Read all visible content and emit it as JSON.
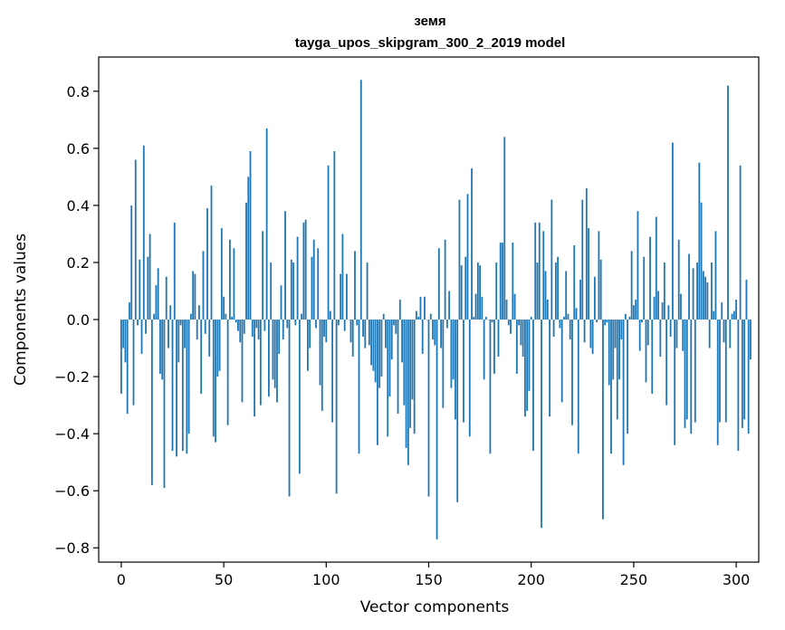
{
  "chart_data": {
    "type": "bar",
    "title": "земя",
    "subtitle": "tayga_upos_skipgram_300_2_2019 model",
    "xlabel": "Vector components",
    "ylabel": "Components values",
    "xlim": [
      -11,
      311
    ],
    "ylim": [
      -0.85,
      0.92
    ],
    "xticks": [
      0,
      50,
      100,
      150,
      200,
      250,
      300
    ],
    "yticks": [
      -0.8,
      -0.6,
      -0.4,
      -0.2,
      0.0,
      0.2,
      0.4,
      0.6,
      0.8
    ],
    "ytick_labels": [
      "−0.8",
      "−0.6",
      "−0.4",
      "−0.2",
      "0.0",
      "0.2",
      "0.4",
      "0.6",
      "0.8"
    ],
    "bar_color": "#1f77b4",
    "grid": false,
    "values": [
      -0.26,
      -0.1,
      -0.15,
      -0.33,
      0.06,
      0.4,
      -0.3,
      0.56,
      -0.02,
      0.21,
      -0.12,
      0.61,
      -0.05,
      0.22,
      0.3,
      -0.58,
      0.02,
      0.12,
      0.18,
      -0.19,
      -0.21,
      -0.59,
      0.15,
      -0.1,
      0.05,
      -0.46,
      0.34,
      -0.48,
      -0.15,
      -0.02,
      -0.46,
      -0.1,
      -0.47,
      -0.4,
      0.02,
      0.17,
      0.16,
      -0.07,
      0.05,
      -0.26,
      0.24,
      -0.05,
      0.39,
      -0.13,
      0.47,
      -0.41,
      -0.43,
      -0.2,
      -0.18,
      0.32,
      0.08,
      0.02,
      -0.37,
      0.28,
      0.01,
      0.25,
      -0.01,
      -0.04,
      -0.08,
      -0.29,
      -0.05,
      0.41,
      0.5,
      0.59,
      -0.06,
      -0.34,
      -0.03,
      -0.07,
      -0.3,
      0.31,
      -0.04,
      0.67,
      -0.27,
      0.2,
      -0.21,
      -0.24,
      -0.29,
      -0.12,
      0.12,
      -0.07,
      0.38,
      -0.03,
      -0.62,
      0.21,
      0.2,
      -0.02,
      0.29,
      -0.54,
      0.02,
      0.34,
      0.35,
      -0.18,
      -0.1,
      0.22,
      0.28,
      -0.03,
      0.25,
      -0.23,
      -0.32,
      -0.06,
      -0.08,
      0.54,
      0.03,
      -0.36,
      0.59,
      -0.61,
      -0.02,
      0.16,
      0.3,
      -0.04,
      0.16,
      0.0,
      -0.08,
      -0.13,
      0.24,
      -0.02,
      -0.47,
      0.84,
      -0.06,
      -0.1,
      0.2,
      -0.09,
      -0.16,
      -0.18,
      -0.22,
      -0.44,
      -0.24,
      -0.2,
      0.02,
      -0.1,
      -0.41,
      -0.27,
      -0.14,
      -0.02,
      -0.05,
      -0.33,
      0.07,
      -0.15,
      -0.3,
      -0.45,
      -0.51,
      -0.38,
      -0.28,
      -0.4,
      0.03,
      0.01,
      0.08,
      -0.12,
      0.08,
      0.0,
      -0.62,
      0.02,
      -0.07,
      -0.09,
      -0.77,
      0.25,
      -0.1,
      -0.31,
      0.28,
      -0.03,
      0.1,
      -0.24,
      -0.21,
      -0.35,
      -0.64,
      0.42,
      0.19,
      -0.36,
      0.22,
      0.44,
      -0.41,
      0.53,
      0.01,
      0.09,
      0.2,
      0.19,
      0.08,
      -0.21,
      0.01,
      0.0,
      -0.47,
      -0.01,
      -0.19,
      0.2,
      -0.13,
      0.27,
      0.27,
      0.64,
      0.07,
      -0.02,
      -0.05,
      0.27,
      0.09,
      -0.19,
      -0.02,
      -0.09,
      -0.13,
      -0.34,
      -0.32,
      -0.25,
      0.01,
      -0.46,
      0.34,
      0.2,
      0.34,
      -0.73,
      0.31,
      0.17,
      0.07,
      -0.34,
      0.42,
      -0.06,
      0.2,
      0.22,
      -0.03,
      -0.29,
      0.01,
      0.17,
      0.02,
      -0.07,
      -0.37,
      0.26,
      0.04,
      -0.47,
      0.14,
      0.42,
      -0.08,
      0.46,
      0.32,
      -0.1,
      -0.12,
      0.15,
      -0.01,
      0.31,
      0.21,
      -0.7,
      -0.02,
      -0.01,
      -0.23,
      -0.47,
      -0.21,
      -0.1,
      -0.35,
      -0.21,
      -0.07,
      -0.51,
      0.02,
      -0.4,
      0.01,
      0.24,
      0.05,
      0.07,
      0.38,
      -0.11,
      -0.01,
      0.22,
      -0.22,
      -0.09,
      0.29,
      -0.26,
      0.08,
      0.36,
      0.1,
      -0.13,
      0.06,
      0.2,
      -0.3,
      0.05,
      -0.06,
      0.62,
      -0.44,
      -0.1,
      0.28,
      0.09,
      -0.11,
      -0.38,
      -0.35,
      0.23,
      -0.4,
      0.18,
      -0.36,
      0.2,
      0.55,
      0.41,
      0.17,
      0.15,
      0.13,
      -0.1,
      0.2,
      0.03,
      0.31,
      -0.44,
      -0.36,
      0.06,
      -0.08,
      -0.36,
      0.82,
      -0.1,
      0.02,
      0.03,
      0.07,
      -0.46,
      0.54,
      -0.38,
      -0.35,
      0.14,
      -0.4,
      -0.14
    ]
  }
}
